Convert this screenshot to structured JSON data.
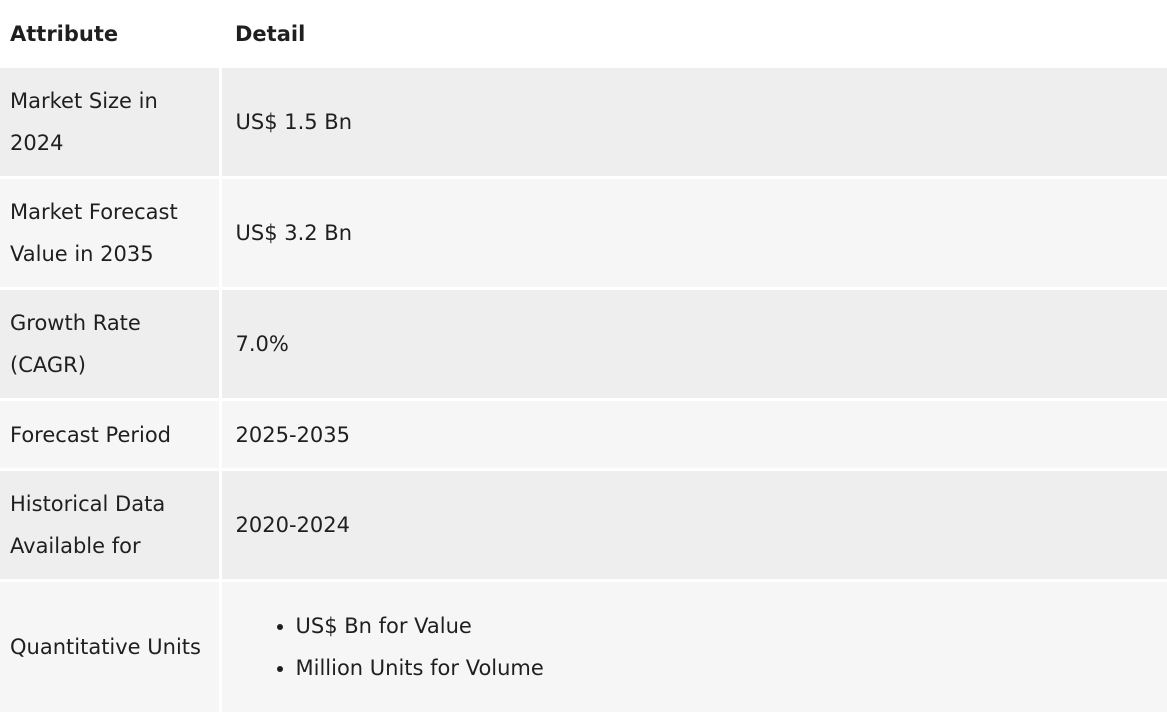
{
  "table": {
    "headers": [
      "Attribute",
      "Detail"
    ],
    "rows": [
      {
        "attribute": "Market Size in 2024",
        "detail": "US$ 1.5 Bn"
      },
      {
        "attribute": "Market Forecast Value in 2035",
        "detail": "US$ 3.2 Bn"
      },
      {
        "attribute": "Growth Rate (CAGR)",
        "detail": "7.0%"
      },
      {
        "attribute": "Forecast Period",
        "detail": "2025-2035"
      },
      {
        "attribute": "Historical Data Available for",
        "detail": "2020-2024"
      },
      {
        "attribute": "Quantitative Units",
        "detail_list": [
          "US$ Bn for Value",
          "Million Units for Volume"
        ]
      }
    ]
  }
}
